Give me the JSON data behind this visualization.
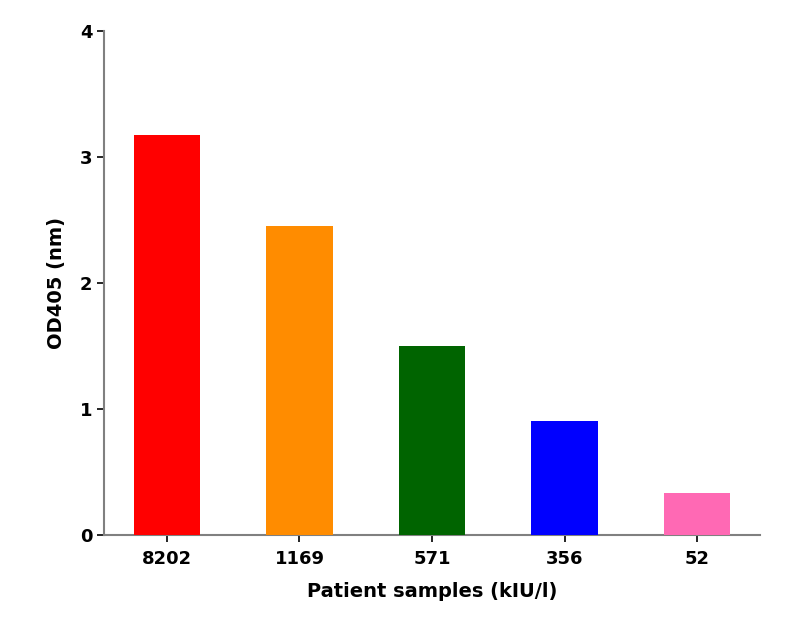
{
  "categories": [
    "8202",
    "1169",
    "571",
    "356",
    "52"
  ],
  "values": [
    3.18,
    2.45,
    1.5,
    0.9,
    0.33
  ],
  "bar_colors": [
    "#FF0000",
    "#FF8C00",
    "#006400",
    "#0000FF",
    "#FF69B4"
  ],
  "xlabel": "Patient samples (kIU/l)",
  "ylabel": "OD405 (nm)",
  "ylim": [
    0,
    4
  ],
  "yticks": [
    0,
    1,
    2,
    3,
    4
  ],
  "background_color": "#FFFFFF",
  "bar_width": 0.5,
  "xlabel_fontsize": 14,
  "ylabel_fontsize": 14,
  "tick_fontsize": 13,
  "spine_color": "#808080",
  "tick_color": "#808080"
}
